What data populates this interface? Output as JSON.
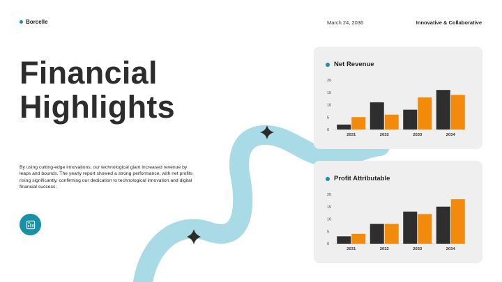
{
  "header": {
    "brand": "Borcelle",
    "date": "March 24, 2036",
    "tagline": "Innovative & Collaborative"
  },
  "title_lines": [
    "Financial",
    "Highlights"
  ],
  "description": "By using cutting-edge innovations, our technological giant increased revenue by leaps and bounds. The yearly report showed a strong performance, with net profits rising significantly, confirming our dedication to technological innovation and digital financial success.",
  "colors": {
    "accent": "#1592a8",
    "ribbon": "#a8dbe5",
    "series_dark": "#2e2e2e",
    "series_orange": "#f28a0c"
  },
  "icons": {
    "badge": "chart-document-icon",
    "stars": "four-point-star-icon"
  },
  "chart_data": [
    {
      "type": "bar",
      "title": "Net Revenue",
      "categories": [
        "2031",
        "2032",
        "2033",
        "2034"
      ],
      "series": [
        {
          "values": [
            2,
            11,
            8,
            16
          ]
        },
        {
          "values": [
            5,
            6,
            13,
            14
          ]
        }
      ],
      "ylim": [
        0,
        20
      ],
      "yticks": [
        "0",
        "5",
        "10",
        "15",
        "20"
      ],
      "grid": false
    },
    {
      "type": "bar",
      "title": "Profit Attributable",
      "categories": [
        "2031",
        "2032",
        "2033",
        "2034"
      ],
      "series": [
        {
          "values": [
            3,
            8,
            13,
            15
          ]
        },
        {
          "values": [
            4,
            8,
            12,
            18
          ]
        }
      ],
      "ylim": [
        0,
        20
      ],
      "yticks": [
        "0",
        "5",
        "10",
        "15",
        "20"
      ],
      "grid": false
    }
  ]
}
